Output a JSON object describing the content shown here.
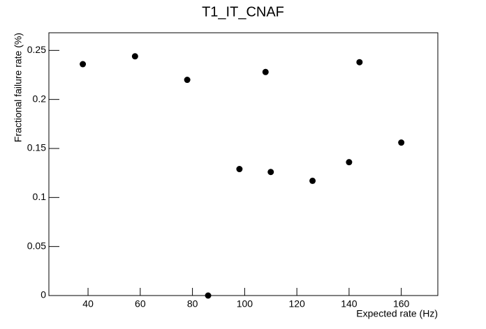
{
  "chart_data": {
    "type": "scatter",
    "title": "T1_IT_CNAF",
    "x_label": "Expected rate (Hz)",
    "y_label": "Fractional failure rate (%)",
    "x": [
      38,
      58,
      78,
      86,
      98,
      108,
      110,
      126,
      140,
      144,
      160
    ],
    "values": [
      0.236,
      0.244,
      0.22,
      0,
      0.129,
      0.228,
      0.126,
      0.117,
      0.136,
      0.238,
      0.156
    ],
    "color": "#000000",
    "xlim": [
      25,
      174
    ],
    "xticks": [
      40,
      60,
      80,
      100,
      120,
      140,
      160
    ],
    "ylim": [
      0,
      0.268
    ],
    "yticks": [
      0,
      0.05,
      0.1,
      0.15,
      0.2,
      0.25
    ],
    "grid": false
  }
}
